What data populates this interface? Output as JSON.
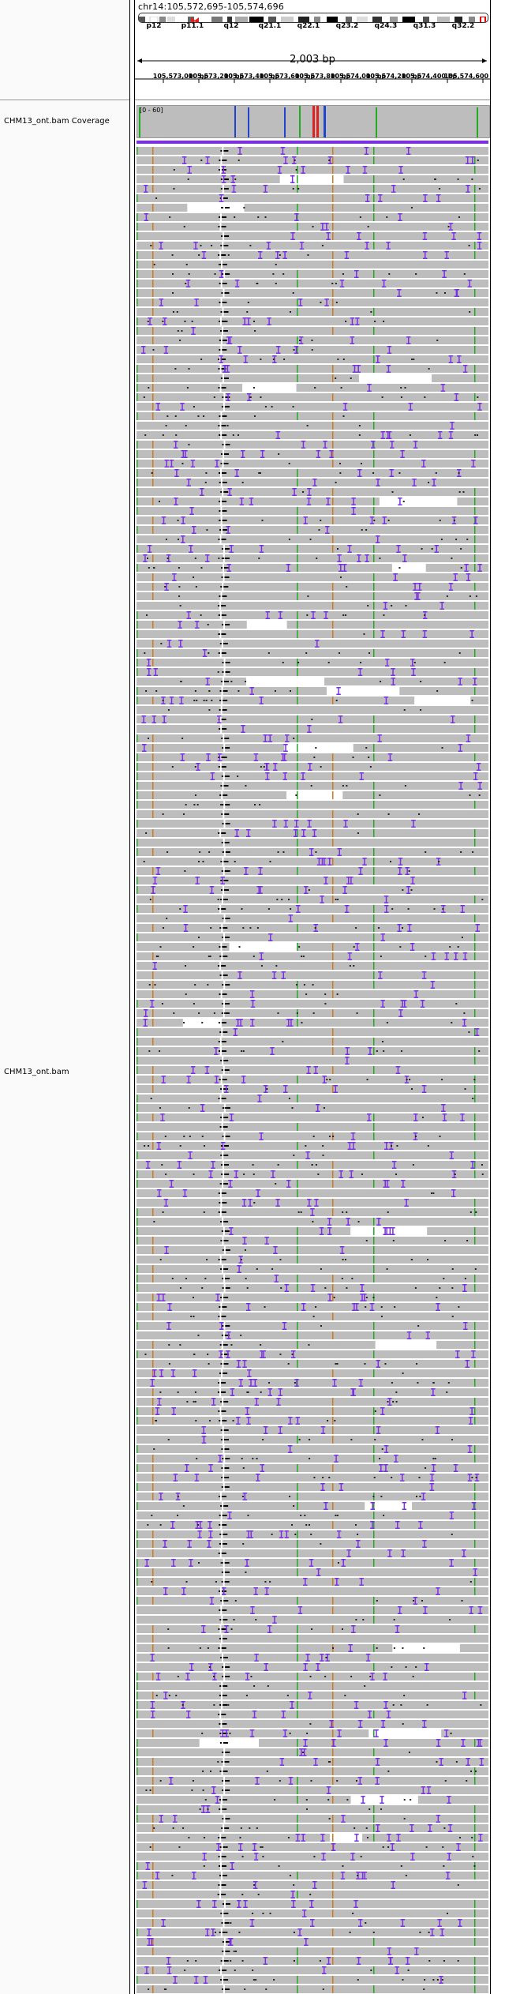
{
  "locus": "chr14:105,572,695-105,574,696",
  "bands": [
    "p12",
    "p11.1",
    "q12",
    "q21.1",
    "q22.1",
    "q23.2",
    "q24.3",
    "q31.3",
    "q32.2"
  ],
  "span": "2,003 bp",
  "ticks": [
    "105,573,000 bp",
    "105,573,200 bp",
    "105,573,400 bp",
    "105,573,600 bp",
    "105,573,800 bp",
    "105,574,000 bp",
    "105,574,200 bp",
    "105,574,400 bp",
    "105,574,600"
  ],
  "tracks": {
    "coverage_name": "CHM13_ont.bam Coverage",
    "coverage_range": "[0 - 60]",
    "alignment_name": "CHM13_ont.bam"
  },
  "colors": {
    "read_gray": "#bdbdbd",
    "insertion_purple": "#7b2fe0",
    "mismatch_green": "#22aa22",
    "mismatch_orange": "#d07a20",
    "mismatch_red": "#dd2222",
    "mismatch_blue": "#2244cc",
    "deletion_black": "#000000"
  },
  "icons": {
    "region_marker": "red-rectangle-icon",
    "centromere": "red-arrowheads-icon"
  }
}
